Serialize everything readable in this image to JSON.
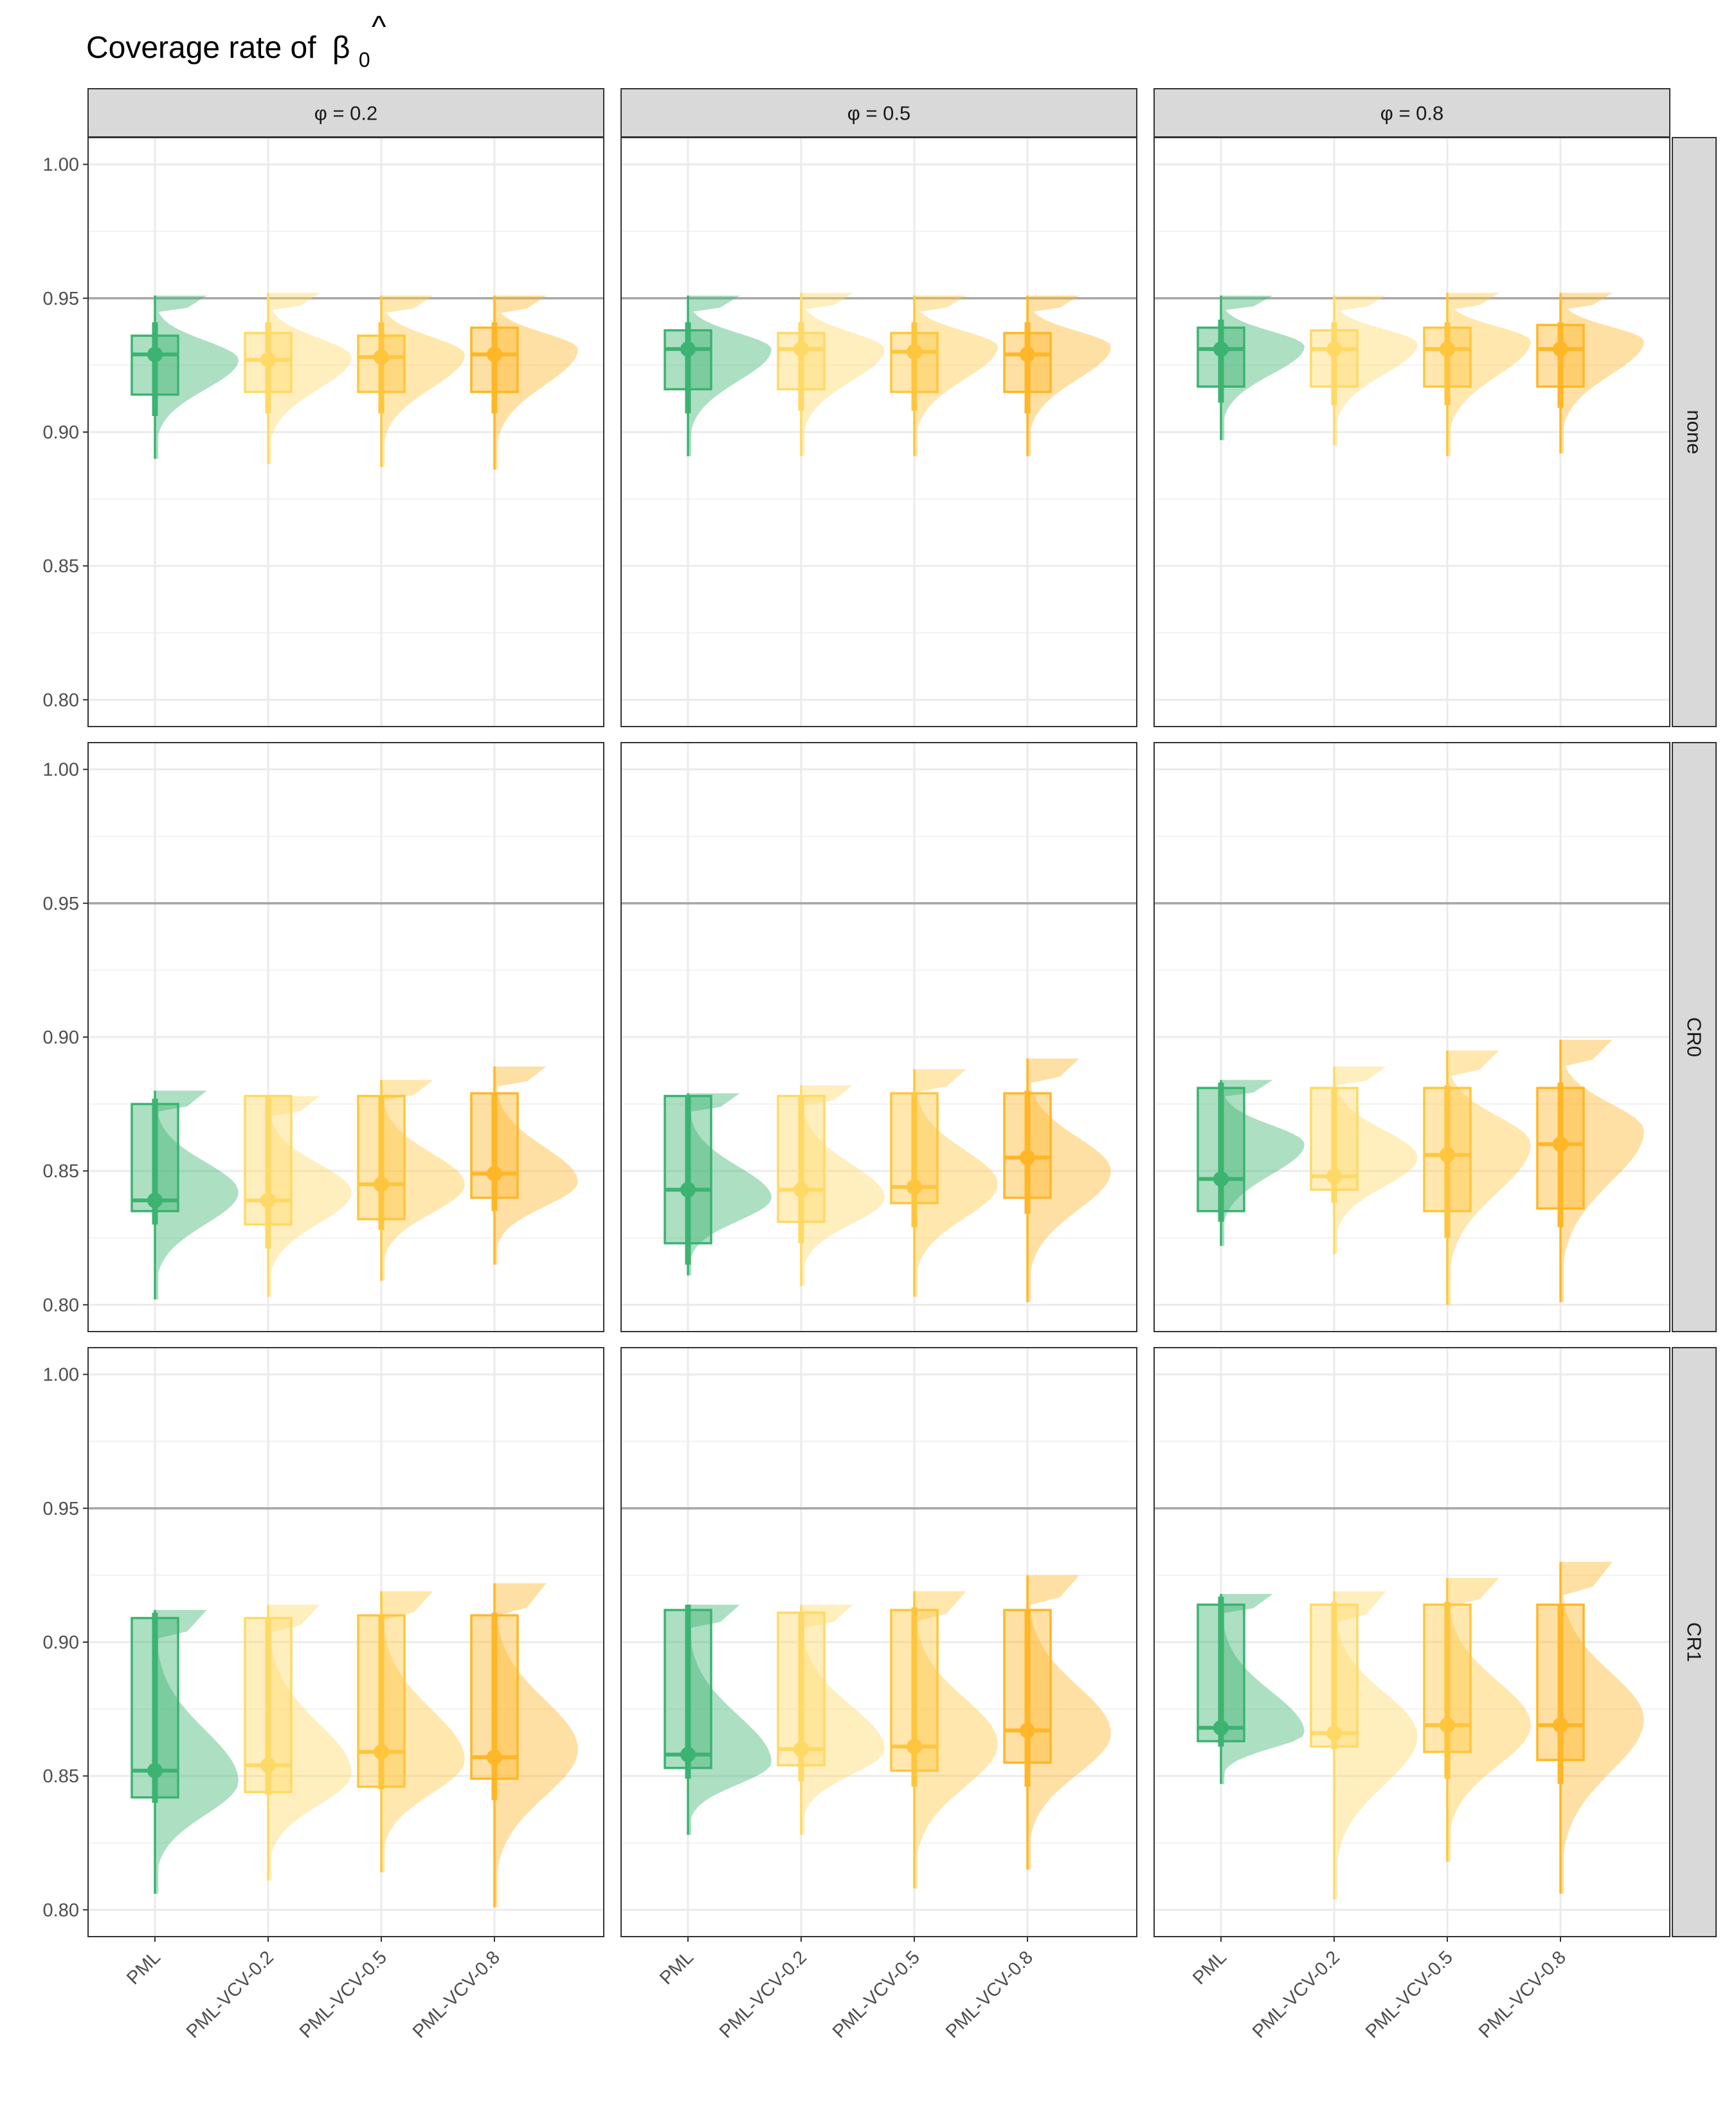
{
  "chart_data": {
    "type": "raincloud",
    "title": "Coverage rate of",
    "title_symbol": "β",
    "title_hat": "^",
    "title_subscript": "0",
    "xlabel": "",
    "ylabel": "",
    "categories": [
      "PML",
      "PML-VCV-0.2",
      "PML-VCV-0.5",
      "PML-VCV-0.8"
    ],
    "column_strips": [
      "φ = 0.2",
      "φ = 0.5",
      "φ = 0.8"
    ],
    "row_strips": [
      "none",
      "CR0",
      "CR1"
    ],
    "ylim": [
      0.79,
      1.01
    ],
    "y_ticks": [
      0.8,
      0.85,
      0.9,
      0.95,
      1.0
    ],
    "y_tick_labels": [
      "0.80",
      "0.85",
      "0.90",
      "0.95",
      "1.00"
    ],
    "reference_line": 0.95,
    "grid": true,
    "legend": "none",
    "colors": {
      "PML": "#3cb371",
      "PML-VCV-0.2": "#ffd966",
      "PML-VCV-0.5": "#ffc53d",
      "PML-VCV-0.8": "#ffb627",
      "reference_line": "#a6a6a6",
      "strip_fill": "#d9d9d9",
      "panel_border": "#333333",
      "grid_major": "#ebebeb",
      "grid_minor": "#f2f2f2"
    },
    "panels": [
      {
        "row": "none",
        "col": "φ = 0.2",
        "groups": [
          {
            "category": "PML",
            "min": 0.89,
            "q1": 0.914,
            "median": 0.929,
            "q3": 0.936,
            "max": 0.951,
            "point": 0.929,
            "ci": [
              0.906,
              0.941
            ],
            "peak": 0.927
          },
          {
            "category": "PML-VCV-0.2",
            "min": 0.888,
            "q1": 0.915,
            "median": 0.927,
            "q3": 0.937,
            "max": 0.952,
            "point": 0.927,
            "ci": [
              0.907,
              0.941
            ],
            "peak": 0.928
          },
          {
            "category": "PML-VCV-0.5",
            "min": 0.887,
            "q1": 0.915,
            "median": 0.928,
            "q3": 0.936,
            "max": 0.951,
            "point": 0.928,
            "ci": [
              0.907,
              0.941
            ],
            "peak": 0.929
          },
          {
            "category": "PML-VCV-0.8",
            "min": 0.886,
            "q1": 0.915,
            "median": 0.929,
            "q3": 0.939,
            "max": 0.951,
            "point": 0.929,
            "ci": [
              0.907,
              0.941
            ],
            "peak": 0.931
          }
        ]
      },
      {
        "row": "none",
        "col": "φ = 0.5",
        "groups": [
          {
            "category": "PML",
            "min": 0.891,
            "q1": 0.916,
            "median": 0.931,
            "q3": 0.938,
            "max": 0.951,
            "point": 0.931,
            "ci": [
              0.907,
              0.941
            ],
            "peak": 0.931
          },
          {
            "category": "PML-VCV-0.2",
            "min": 0.891,
            "q1": 0.916,
            "median": 0.931,
            "q3": 0.937,
            "max": 0.952,
            "point": 0.931,
            "ci": [
              0.908,
              0.941
            ],
            "peak": 0.931
          },
          {
            "category": "PML-VCV-0.5",
            "min": 0.891,
            "q1": 0.915,
            "median": 0.93,
            "q3": 0.937,
            "max": 0.951,
            "point": 0.93,
            "ci": [
              0.908,
              0.941
            ],
            "peak": 0.932
          },
          {
            "category": "PML-VCV-0.8",
            "min": 0.891,
            "q1": 0.915,
            "median": 0.929,
            "q3": 0.937,
            "max": 0.951,
            "point": 0.929,
            "ci": [
              0.907,
              0.941
            ],
            "peak": 0.932
          }
        ]
      },
      {
        "row": "none",
        "col": "φ = 0.8",
        "groups": [
          {
            "category": "PML",
            "min": 0.897,
            "q1": 0.917,
            "median": 0.931,
            "q3": 0.939,
            "max": 0.951,
            "point": 0.931,
            "ci": [
              0.911,
              0.942
            ],
            "peak": 0.932
          },
          {
            "category": "PML-VCV-0.2",
            "min": 0.895,
            "q1": 0.917,
            "median": 0.931,
            "q3": 0.938,
            "max": 0.951,
            "point": 0.931,
            "ci": [
              0.91,
              0.941
            ],
            "peak": 0.933
          },
          {
            "category": "PML-VCV-0.5",
            "min": 0.891,
            "q1": 0.917,
            "median": 0.931,
            "q3": 0.939,
            "max": 0.952,
            "point": 0.931,
            "ci": [
              0.91,
              0.941
            ],
            "peak": 0.934
          },
          {
            "category": "PML-VCV-0.8",
            "min": 0.892,
            "q1": 0.917,
            "median": 0.931,
            "q3": 0.94,
            "max": 0.952,
            "point": 0.931,
            "ci": [
              0.909,
              0.941
            ],
            "peak": 0.934
          }
        ]
      },
      {
        "row": "CR0",
        "col": "φ = 0.2",
        "groups": [
          {
            "category": "PML",
            "min": 0.802,
            "q1": 0.835,
            "median": 0.839,
            "q3": 0.875,
            "max": 0.88,
            "point": 0.839,
            "ci": [
              0.83,
              0.877
            ],
            "peak": 0.842
          },
          {
            "category": "PML-VCV-0.2",
            "min": 0.803,
            "q1": 0.83,
            "median": 0.839,
            "q3": 0.878,
            "max": 0.878,
            "point": 0.839,
            "ci": [
              0.821,
              0.878
            ],
            "peak": 0.842
          },
          {
            "category": "PML-VCV-0.5",
            "min": 0.809,
            "q1": 0.832,
            "median": 0.845,
            "q3": 0.878,
            "max": 0.884,
            "point": 0.845,
            "ci": [
              0.828,
              0.878
            ],
            "peak": 0.845
          },
          {
            "category": "PML-VCV-0.8",
            "min": 0.815,
            "q1": 0.84,
            "median": 0.849,
            "q3": 0.879,
            "max": 0.889,
            "point": 0.849,
            "ci": [
              0.835,
              0.879
            ],
            "peak": 0.846
          }
        ]
      },
      {
        "row": "CR0",
        "col": "φ = 0.5",
        "groups": [
          {
            "category": "PML",
            "min": 0.811,
            "q1": 0.823,
            "median": 0.843,
            "q3": 0.878,
            "max": 0.879,
            "point": 0.843,
            "ci": [
              0.815,
              0.878
            ],
            "peak": 0.84
          },
          {
            "category": "PML-VCV-0.2",
            "min": 0.807,
            "q1": 0.831,
            "median": 0.843,
            "q3": 0.878,
            "max": 0.882,
            "point": 0.843,
            "ci": [
              0.823,
              0.878
            ],
            "peak": 0.84
          },
          {
            "category": "PML-VCV-0.5",
            "min": 0.803,
            "q1": 0.838,
            "median": 0.844,
            "q3": 0.879,
            "max": 0.888,
            "point": 0.844,
            "ci": [
              0.829,
              0.879
            ],
            "peak": 0.845
          },
          {
            "category": "PML-VCV-0.8",
            "min": 0.801,
            "q1": 0.84,
            "median": 0.855,
            "q3": 0.879,
            "max": 0.892,
            "point": 0.855,
            "ci": [
              0.834,
              0.88
            ],
            "peak": 0.85
          }
        ]
      },
      {
        "row": "CR0",
        "col": "φ = 0.8",
        "groups": [
          {
            "category": "PML",
            "min": 0.822,
            "q1": 0.835,
            "median": 0.847,
            "q3": 0.881,
            "max": 0.884,
            "point": 0.847,
            "ci": [
              0.831,
              0.883
            ],
            "peak": 0.86
          },
          {
            "category": "PML-VCV-0.2",
            "min": 0.819,
            "q1": 0.843,
            "median": 0.848,
            "q3": 0.881,
            "max": 0.889,
            "point": 0.848,
            "ci": [
              0.838,
              0.881
            ],
            "peak": 0.855
          },
          {
            "category": "PML-VCV-0.5",
            "min": 0.8,
            "q1": 0.835,
            "median": 0.856,
            "q3": 0.881,
            "max": 0.895,
            "point": 0.856,
            "ci": [
              0.825,
              0.882
            ],
            "peak": 0.86
          },
          {
            "category": "PML-VCV-0.8",
            "min": 0.801,
            "q1": 0.836,
            "median": 0.86,
            "q3": 0.881,
            "max": 0.899,
            "point": 0.86,
            "ci": [
              0.829,
              0.883
            ],
            "peak": 0.865
          }
        ]
      },
      {
        "row": "CR1",
        "col": "φ = 0.2",
        "groups": [
          {
            "category": "PML",
            "min": 0.806,
            "q1": 0.842,
            "median": 0.852,
            "q3": 0.909,
            "max": 0.912,
            "point": 0.852,
            "ci": [
              0.84,
              0.911
            ],
            "peak": 0.848
          },
          {
            "category": "PML-VCV-0.2",
            "min": 0.811,
            "q1": 0.844,
            "median": 0.854,
            "q3": 0.909,
            "max": 0.914,
            "point": 0.854,
            "ci": [
              0.843,
              0.909
            ],
            "peak": 0.851
          },
          {
            "category": "PML-VCV-0.5",
            "min": 0.814,
            "q1": 0.846,
            "median": 0.859,
            "q3": 0.91,
            "max": 0.919,
            "point": 0.859,
            "ci": [
              0.845,
              0.91
            ],
            "peak": 0.856
          },
          {
            "category": "PML-VCV-0.8",
            "min": 0.801,
            "q1": 0.849,
            "median": 0.857,
            "q3": 0.91,
            "max": 0.922,
            "point": 0.857,
            "ci": [
              0.841,
              0.911
            ],
            "peak": 0.86
          }
        ]
      },
      {
        "row": "CR1",
        "col": "φ = 0.5",
        "groups": [
          {
            "category": "PML",
            "min": 0.828,
            "q1": 0.853,
            "median": 0.858,
            "q3": 0.912,
            "max": 0.914,
            "point": 0.858,
            "ci": [
              0.849,
              0.914
            ],
            "peak": 0.855
          },
          {
            "category": "PML-VCV-0.2",
            "min": 0.828,
            "q1": 0.854,
            "median": 0.86,
            "q3": 0.911,
            "max": 0.914,
            "point": 0.86,
            "ci": [
              0.848,
              0.911
            ],
            "peak": 0.86
          },
          {
            "category": "PML-VCV-0.5",
            "min": 0.808,
            "q1": 0.852,
            "median": 0.861,
            "q3": 0.912,
            "max": 0.919,
            "point": 0.861,
            "ci": [
              0.846,
              0.913
            ],
            "peak": 0.862
          },
          {
            "category": "PML-VCV-0.8",
            "min": 0.815,
            "q1": 0.855,
            "median": 0.867,
            "q3": 0.912,
            "max": 0.925,
            "point": 0.867,
            "ci": [
              0.846,
              0.912
            ],
            "peak": 0.866
          }
        ]
      },
      {
        "row": "CR1",
        "col": "φ = 0.8",
        "groups": [
          {
            "category": "PML",
            "min": 0.847,
            "q1": 0.863,
            "median": 0.868,
            "q3": 0.914,
            "max": 0.918,
            "point": 0.868,
            "ci": [
              0.861,
              0.917
            ],
            "peak": 0.866
          },
          {
            "category": "PML-VCV-0.2",
            "min": 0.804,
            "q1": 0.861,
            "median": 0.866,
            "q3": 0.914,
            "max": 0.919,
            "point": 0.866,
            "ci": [
              0.86,
              0.915
            ],
            "peak": 0.865
          },
          {
            "category": "PML-VCV-0.5",
            "min": 0.818,
            "q1": 0.859,
            "median": 0.869,
            "q3": 0.914,
            "max": 0.924,
            "point": 0.869,
            "ci": [
              0.849,
              0.915
            ],
            "peak": 0.869
          },
          {
            "category": "PML-VCV-0.8",
            "min": 0.806,
            "q1": 0.856,
            "median": 0.869,
            "q3": 0.914,
            "max": 0.93,
            "point": 0.869,
            "ci": [
              0.847,
              0.914
            ],
            "peak": 0.871
          }
        ]
      }
    ]
  }
}
